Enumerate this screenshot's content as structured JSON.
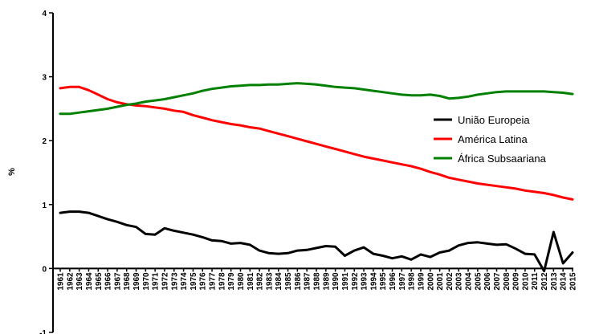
{
  "chart_data": {
    "type": "line",
    "title": "",
    "xlabel": "",
    "ylabel": "%",
    "ylim": [
      -1,
      4
    ],
    "yticks": [
      "-1",
      "0",
      "1",
      "2",
      "3",
      "4"
    ],
    "grid": false,
    "legend_position": "right",
    "x": [
      "1961",
      "1962",
      "1963",
      "1964",
      "1965",
      "1966",
      "1967",
      "1968",
      "1969",
      "1970",
      "1971",
      "1972",
      "1973",
      "1974",
      "1975",
      "1976",
      "1977",
      "1978",
      "1979",
      "1980",
      "1981",
      "1982",
      "1983",
      "1984",
      "1985",
      "1986",
      "1987",
      "1988",
      "1989",
      "1990",
      "1991",
      "1992",
      "1993",
      "1994",
      "1995",
      "1996",
      "1997",
      "1998",
      "1999",
      "2000",
      "2001",
      "2002",
      "2003",
      "2004",
      "2005",
      "2006",
      "2007",
      "2008",
      "2009",
      "2010",
      "2011",
      "2012",
      "2013",
      "2014",
      "2015"
    ],
    "series": [
      {
        "name": "União Europeia",
        "color": "#000000",
        "values": [
          0.87,
          0.89,
          0.89,
          0.87,
          0.82,
          0.77,
          0.73,
          0.68,
          0.65,
          0.54,
          0.53,
          0.63,
          0.59,
          0.56,
          0.53,
          0.49,
          0.44,
          0.43,
          0.39,
          0.4,
          0.37,
          0.28,
          0.24,
          0.23,
          0.24,
          0.28,
          0.29,
          0.32,
          0.35,
          0.34,
          0.2,
          0.28,
          0.33,
          0.23,
          0.2,
          0.16,
          0.19,
          0.14,
          0.22,
          0.18,
          0.25,
          0.28,
          0.36,
          0.4,
          0.41,
          0.39,
          0.37,
          0.38,
          0.31,
          0.23,
          0.22,
          -0.04,
          0.57,
          0.08,
          0.25
        ]
      },
      {
        "name": "América Latina",
        "color": "#ff0000",
        "values": [
          2.82,
          2.84,
          2.84,
          2.79,
          2.72,
          2.65,
          2.6,
          2.57,
          2.55,
          2.54,
          2.52,
          2.5,
          2.47,
          2.45,
          2.4,
          2.36,
          2.32,
          2.29,
          2.26,
          2.24,
          2.21,
          2.19,
          2.15,
          2.11,
          2.07,
          2.03,
          1.99,
          1.95,
          1.91,
          1.87,
          1.83,
          1.79,
          1.75,
          1.72,
          1.69,
          1.66,
          1.63,
          1.6,
          1.56,
          1.51,
          1.47,
          1.42,
          1.39,
          1.36,
          1.33,
          1.31,
          1.29,
          1.27,
          1.25,
          1.22,
          1.2,
          1.18,
          1.15,
          1.11,
          1.08
        ]
      },
      {
        "name": "África Subsaariana",
        "color": "#008000",
        "values": [
          2.42,
          2.42,
          2.44,
          2.46,
          2.48,
          2.5,
          2.53,
          2.56,
          2.58,
          2.61,
          2.63,
          2.65,
          2.68,
          2.71,
          2.74,
          2.78,
          2.81,
          2.83,
          2.85,
          2.86,
          2.87,
          2.87,
          2.88,
          2.88,
          2.89,
          2.9,
          2.89,
          2.88,
          2.86,
          2.84,
          2.83,
          2.82,
          2.8,
          2.78,
          2.76,
          2.74,
          2.72,
          2.71,
          2.71,
          2.72,
          2.7,
          2.66,
          2.67,
          2.69,
          2.72,
          2.74,
          2.76,
          2.77,
          2.77,
          2.77,
          2.77,
          2.77,
          2.76,
          2.75,
          2.73
        ]
      }
    ]
  }
}
